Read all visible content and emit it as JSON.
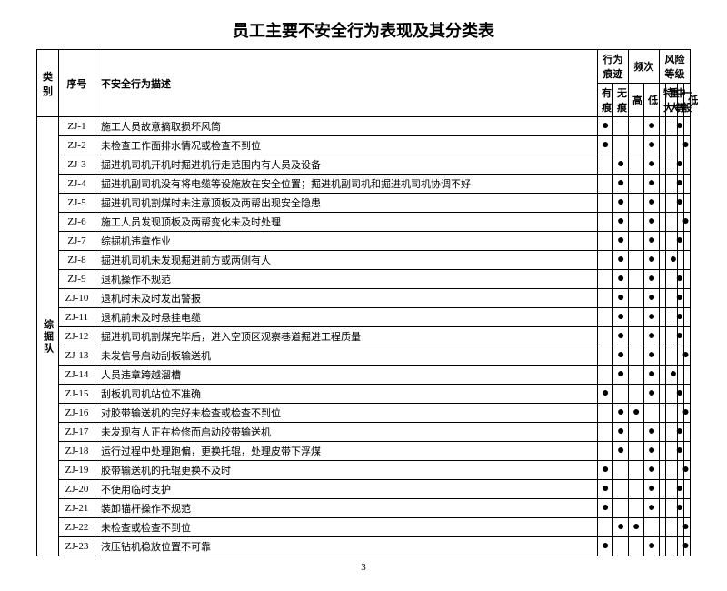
{
  "title": "员工主要不安全行为表现及其分类表",
  "page_number": "3",
  "category_label": "综掘队",
  "header": {
    "category": "类别",
    "seq": "序号",
    "desc": "不安全行为描述",
    "trace_group": "行为痕迹",
    "freq_group": "频次",
    "risk_group": "风险等级",
    "trace_yes": "有痕",
    "trace_no": "无痕",
    "freq_high": "高",
    "freq_low": "低",
    "risk_xl": "特大",
    "risk_l": "重大",
    "risk_m": "中等",
    "risk_s": "一般",
    "risk_xs": "低"
  },
  "rows": [
    {
      "seq": "ZJ-1",
      "desc": "施工人员故意摘取损坏风筒",
      "marks": [
        "●",
        "",
        "",
        "●",
        "",
        "",
        "●",
        "",
        ""
      ]
    },
    {
      "seq": "ZJ-2",
      "desc": "未检查工作面排水情况或检查不到位",
      "marks": [
        "●",
        "",
        "",
        "●",
        "",
        "",
        "",
        "●",
        ""
      ]
    },
    {
      "seq": "ZJ-3",
      "desc": "掘进机司机开机时掘进机行走范围内有人员及设备",
      "marks": [
        "",
        "●",
        "",
        "●",
        "",
        "",
        "●",
        "",
        ""
      ]
    },
    {
      "seq": "ZJ-4",
      "desc": "掘进机副司机没有将电缆等设施放在安全位置；掘进机副司机和掘进机司机协调不好",
      "marks": [
        "",
        "●",
        "",
        "●",
        "",
        "",
        "●",
        "",
        ""
      ]
    },
    {
      "seq": "ZJ-5",
      "desc": "掘进机司机割煤时未注意顶板及两帮出现安全隐患",
      "marks": [
        "",
        "●",
        "",
        "●",
        "",
        "",
        "●",
        "",
        ""
      ]
    },
    {
      "seq": "ZJ-6",
      "desc": "施工人员发现顶板及两帮变化未及时处理",
      "marks": [
        "",
        "●",
        "",
        "●",
        "",
        "",
        "",
        "●",
        ""
      ]
    },
    {
      "seq": "ZJ-7",
      "desc": "综掘机违章作业",
      "marks": [
        "",
        "●",
        "",
        "●",
        "",
        "",
        "●",
        "",
        ""
      ]
    },
    {
      "seq": "ZJ-8",
      "desc": "掘进机司机未发现掘进前方或两侧有人",
      "marks": [
        "",
        "●",
        "",
        "●",
        "",
        "●",
        "",
        "",
        ""
      ]
    },
    {
      "seq": "ZJ-9",
      "desc": "退机操作不规范",
      "marks": [
        "",
        "●",
        "",
        "●",
        "",
        "",
        "●",
        "",
        ""
      ]
    },
    {
      "seq": "ZJ-10",
      "desc": "退机时未及时发出警报",
      "marks": [
        "",
        "●",
        "",
        "●",
        "",
        "",
        "●",
        "",
        ""
      ]
    },
    {
      "seq": "ZJ-11",
      "desc": "退机前未及时悬挂电缆",
      "marks": [
        "",
        "●",
        "",
        "●",
        "",
        "",
        "●",
        "",
        ""
      ]
    },
    {
      "seq": "ZJ-12",
      "desc": "掘进机司机割煤完毕后，进入空顶区观察巷道掘进工程质量",
      "marks": [
        "",
        "●",
        "",
        "●",
        "",
        "",
        "●",
        "",
        ""
      ]
    },
    {
      "seq": "ZJ-13",
      "desc": "未发信号启动刮板输送机",
      "marks": [
        "",
        "●",
        "",
        "●",
        "",
        "",
        "",
        "●",
        ""
      ]
    },
    {
      "seq": "ZJ-14",
      "desc": "人员违章跨越溜槽",
      "marks": [
        "",
        "●",
        "",
        "●",
        "",
        "●",
        "",
        "",
        ""
      ]
    },
    {
      "seq": "ZJ-15",
      "desc": "刮板机司机站位不准确",
      "marks": [
        "●",
        "",
        "",
        "●",
        "",
        "",
        "●",
        "",
        ""
      ]
    },
    {
      "seq": "ZJ-16",
      "desc": "对胶带输送机的完好未检查或检查不到位",
      "marks": [
        "",
        "●",
        "●",
        "",
        "",
        "",
        "",
        "●",
        ""
      ]
    },
    {
      "seq": "ZJ-17",
      "desc": "未发现有人正在检修而启动胶带输送机",
      "marks": [
        "",
        "●",
        "",
        "●",
        "",
        "",
        "●",
        "",
        ""
      ]
    },
    {
      "seq": "ZJ-18",
      "desc": "运行过程中处理跑偏，更换托辊，处理皮带下浮煤",
      "marks": [
        "",
        "●",
        "",
        "●",
        "",
        "",
        "●",
        "",
        ""
      ]
    },
    {
      "seq": "ZJ-19",
      "desc": "胶带输送机的托辊更换不及时",
      "marks": [
        "●",
        "",
        "",
        "●",
        "",
        "",
        "",
        "●",
        ""
      ]
    },
    {
      "seq": "ZJ-20",
      "desc": "不使用临时支护",
      "marks": [
        "●",
        "",
        "",
        "●",
        "",
        "",
        "●",
        "",
        ""
      ]
    },
    {
      "seq": "ZJ-21",
      "desc": "装卸锚杆操作不规范",
      "marks": [
        "●",
        "",
        "",
        "●",
        "",
        "",
        "●",
        "",
        ""
      ]
    },
    {
      "seq": "ZJ-22",
      "desc": "未检查或检查不到位",
      "marks": [
        "",
        "●",
        "●",
        "",
        "",
        "",
        "",
        "●",
        ""
      ]
    },
    {
      "seq": "ZJ-23",
      "desc": "液压钻机稳放位置不可靠",
      "marks": [
        "●",
        "",
        "",
        "●",
        "",
        "",
        "",
        "●",
        ""
      ]
    }
  ]
}
